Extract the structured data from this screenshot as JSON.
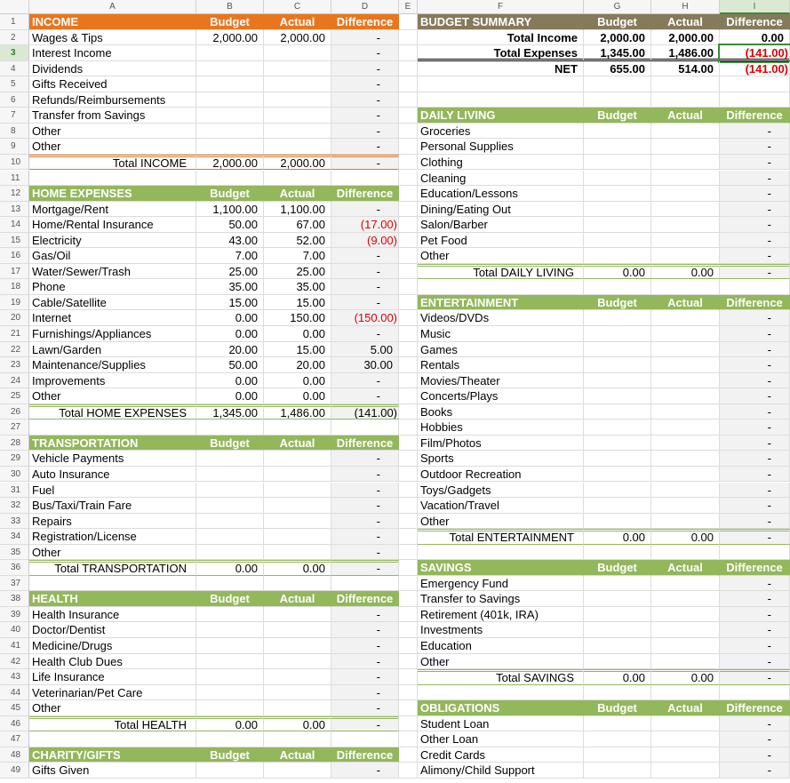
{
  "columns": [
    "A",
    "B",
    "C",
    "D",
    "E",
    "F",
    "G",
    "H",
    "I"
  ],
  "rows": [
    {
      "number": 1,
      "left": {
        "kind": "header",
        "color": "#e8761f",
        "cells": [
          "INCOME",
          "Budget",
          "Actual",
          "Difference"
        ]
      },
      "right": {
        "kind": "header",
        "color": "#857a5a",
        "cells": [
          "BUDGET SUMMARY",
          "Budget",
          "Actual",
          "Difference"
        ]
      }
    },
    {
      "number": 2,
      "left": {
        "kind": "item",
        "cells": [
          "Wages & Tips",
          "2,000.00",
          "2,000.00",
          "-"
        ]
      },
      "right": {
        "kind": "summary",
        "cells": [
          "Total Income",
          "2,000.00",
          "2,000.00",
          "0.00"
        ]
      }
    },
    {
      "number": 3,
      "left": {
        "kind": "item",
        "cells": [
          "Interest Income",
          null,
          null,
          "-"
        ]
      },
      "right": {
        "kind": "summary",
        "cells": [
          "Total Expenses",
          "1,345.00",
          "1,486.00",
          "(141.00)"
        ]
      }
    },
    {
      "number": 4,
      "left": {
        "kind": "item",
        "cells": [
          "Dividends",
          null,
          null,
          "-"
        ]
      },
      "right": {
        "kind": "summary",
        "cells": [
          "NET",
          "655.00",
          "514.00",
          "(141.00)"
        ]
      }
    },
    {
      "number": 5,
      "left": {
        "kind": "item",
        "cells": [
          "Gifts Received",
          null,
          null,
          "-"
        ]
      }
    },
    {
      "number": 6,
      "left": {
        "kind": "item",
        "cells": [
          "Refunds/Reimbursements",
          null,
          null,
          "-"
        ]
      }
    },
    {
      "number": 7,
      "left": {
        "kind": "item",
        "cells": [
          "Transfer from Savings",
          null,
          null,
          "-"
        ]
      },
      "right": {
        "kind": "header",
        "color": "#93b75b",
        "cells": [
          "DAILY LIVING",
          "Budget",
          "Actual",
          "Difference"
        ]
      }
    },
    {
      "number": 8,
      "left": {
        "kind": "item",
        "cells": [
          "Other",
          null,
          null,
          "-"
        ]
      },
      "right": {
        "kind": "item",
        "cells": [
          "Groceries",
          null,
          null,
          "-"
        ]
      }
    },
    {
      "number": 9,
      "left": {
        "kind": "item",
        "cells": [
          "Other",
          null,
          null,
          "-"
        ]
      },
      "right": {
        "kind": "item",
        "cells": [
          "Personal Supplies",
          null,
          null,
          "-"
        ]
      }
    },
    {
      "number": 10,
      "left": {
        "kind": "total",
        "cells": [
          "Total INCOME",
          "2,000.00",
          "2,000.00",
          "-"
        ]
      },
      "right": {
        "kind": "item",
        "cells": [
          "Clothing",
          null,
          null,
          "-"
        ]
      }
    },
    {
      "number": 11,
      "right": {
        "kind": "item",
        "cells": [
          "Cleaning",
          null,
          null,
          "-"
        ]
      }
    },
    {
      "number": 12,
      "left": {
        "kind": "header",
        "color": "#93b75b",
        "cells": [
          "HOME EXPENSES",
          "Budget",
          "Actual",
          "Difference"
        ]
      },
      "right": {
        "kind": "item",
        "cells": [
          "Education/Lessons",
          null,
          null,
          "-"
        ]
      }
    },
    {
      "number": 13,
      "left": {
        "kind": "item",
        "cells": [
          "Mortgage/Rent",
          "1,100.00",
          "1,100.00",
          "-"
        ]
      },
      "right": {
        "kind": "item",
        "cells": [
          "Dining/Eating Out",
          null,
          null,
          "-"
        ]
      }
    },
    {
      "number": 14,
      "left": {
        "kind": "item",
        "cells": [
          "Home/Rental Insurance",
          "50.00",
          "67.00",
          "(17.00)"
        ]
      },
      "right": {
        "kind": "item",
        "cells": [
          "Salon/Barber",
          null,
          null,
          "-"
        ]
      }
    },
    {
      "number": 15,
      "left": {
        "kind": "item",
        "cells": [
          "Electricity",
          "43.00",
          "52.00",
          "(9.00)"
        ]
      },
      "right": {
        "kind": "item",
        "cells": [
          "Pet Food",
          null,
          null,
          "-"
        ]
      }
    },
    {
      "number": 16,
      "left": {
        "kind": "item",
        "cells": [
          "Gas/Oil",
          "7.00",
          "7.00",
          "-"
        ]
      },
      "right": {
        "kind": "item",
        "cells": [
          "Other",
          null,
          null,
          "-"
        ]
      }
    },
    {
      "number": 17,
      "left": {
        "kind": "item",
        "cells": [
          "Water/Sewer/Trash",
          "25.00",
          "25.00",
          "-"
        ]
      },
      "right": {
        "kind": "total",
        "cells": [
          "Total DAILY LIVING",
          "0.00",
          "0.00",
          "-"
        ]
      }
    },
    {
      "number": 18,
      "left": {
        "kind": "item",
        "cells": [
          "Phone",
          "35.00",
          "35.00",
          "-"
        ]
      }
    },
    {
      "number": 19,
      "left": {
        "kind": "item",
        "cells": [
          "Cable/Satellite",
          "15.00",
          "15.00",
          "-"
        ]
      },
      "right": {
        "kind": "header",
        "color": "#93b75b",
        "cells": [
          "ENTERTAINMENT",
          "Budget",
          "Actual",
          "Difference"
        ]
      }
    },
    {
      "number": 20,
      "left": {
        "kind": "item",
        "cells": [
          "Internet",
          "0.00",
          "150.00",
          "(150.00)"
        ]
      },
      "right": {
        "kind": "item",
        "cells": [
          "Videos/DVDs",
          null,
          null,
          "-"
        ]
      }
    },
    {
      "number": 21,
      "left": {
        "kind": "item",
        "cells": [
          "Furnishings/Appliances",
          "0.00",
          "0.00",
          "-"
        ]
      },
      "right": {
        "kind": "item",
        "cells": [
          "Music",
          null,
          null,
          "-"
        ]
      }
    },
    {
      "number": 22,
      "left": {
        "kind": "item",
        "cells": [
          "Lawn/Garden",
          "20.00",
          "15.00",
          "5.00"
        ]
      },
      "right": {
        "kind": "item",
        "cells": [
          "Games",
          null,
          null,
          "-"
        ]
      }
    },
    {
      "number": 23,
      "left": {
        "kind": "item",
        "cells": [
          "Maintenance/Supplies",
          "50.00",
          "20.00",
          "30.00"
        ]
      },
      "right": {
        "kind": "item",
        "cells": [
          "Rentals",
          null,
          null,
          "-"
        ]
      }
    },
    {
      "number": 24,
      "left": {
        "kind": "item",
        "cells": [
          "Improvements",
          "0.00",
          "0.00",
          "-"
        ]
      },
      "right": {
        "kind": "item",
        "cells": [
          "Movies/Theater",
          null,
          null,
          "-"
        ]
      }
    },
    {
      "number": 25,
      "left": {
        "kind": "item",
        "cells": [
          "Other",
          "0.00",
          "0.00",
          "-"
        ]
      },
      "right": {
        "kind": "item",
        "cells": [
          "Concerts/Plays",
          null,
          null,
          "-"
        ]
      }
    },
    {
      "number": 26,
      "left": {
        "kind": "total",
        "cells": [
          "Total HOME EXPENSES",
          "1,345.00",
          "1,486.00",
          "(141.00)"
        ]
      },
      "right": {
        "kind": "item",
        "cells": [
          "Books",
          null,
          null,
          "-"
        ]
      }
    },
    {
      "number": 27,
      "right": {
        "kind": "item",
        "cells": [
          "Hobbies",
          null,
          null,
          "-"
        ]
      }
    },
    {
      "number": 28,
      "left": {
        "kind": "header",
        "color": "#93b75b",
        "cells": [
          "TRANSPORTATION",
          "Budget",
          "Actual",
          "Difference"
        ]
      },
      "right": {
        "kind": "item",
        "cells": [
          "Film/Photos",
          null,
          null,
          "-"
        ]
      }
    },
    {
      "number": 29,
      "left": {
        "kind": "item",
        "cells": [
          "Vehicle Payments",
          null,
          null,
          "-"
        ]
      },
      "right": {
        "kind": "item",
        "cells": [
          "Sports",
          null,
          null,
          "-"
        ]
      }
    },
    {
      "number": 30,
      "left": {
        "kind": "item",
        "cells": [
          "Auto Insurance",
          null,
          null,
          "-"
        ]
      },
      "right": {
        "kind": "item",
        "cells": [
          "Outdoor Recreation",
          null,
          null,
          "-"
        ]
      }
    },
    {
      "number": 31,
      "left": {
        "kind": "item",
        "cells": [
          "Fuel",
          null,
          null,
          "-"
        ]
      },
      "right": {
        "kind": "item",
        "cells": [
          "Toys/Gadgets",
          null,
          null,
          "-"
        ]
      }
    },
    {
      "number": 32,
      "left": {
        "kind": "item",
        "cells": [
          "Bus/Taxi/Train Fare",
          null,
          null,
          "-"
        ]
      },
      "right": {
        "kind": "item",
        "cells": [
          "Vacation/Travel",
          null,
          null,
          "-"
        ]
      }
    },
    {
      "number": 33,
      "left": {
        "kind": "item",
        "cells": [
          "Repairs",
          null,
          null,
          "-"
        ]
      },
      "right": {
        "kind": "item",
        "cells": [
          "Other",
          null,
          null,
          "-"
        ]
      }
    },
    {
      "number": 34,
      "left": {
        "kind": "item",
        "cells": [
          "Registration/License",
          null,
          null,
          "-"
        ]
      },
      "right": {
        "kind": "total",
        "cells": [
          "Total ENTERTAINMENT",
          "0.00",
          "0.00",
          "-"
        ]
      }
    },
    {
      "number": 35,
      "left": {
        "kind": "item",
        "cells": [
          "Other",
          null,
          null,
          "-"
        ]
      }
    },
    {
      "number": 36,
      "left": {
        "kind": "total",
        "cells": [
          "Total TRANSPORTATION",
          "0.00",
          "0.00",
          "-"
        ]
      },
      "right": {
        "kind": "header",
        "color": "#93b75b",
        "cells": [
          "SAVINGS",
          "Budget",
          "Actual",
          "Difference"
        ]
      }
    },
    {
      "number": 37,
      "right": {
        "kind": "item",
        "cells": [
          "Emergency Fund",
          null,
          null,
          "-"
        ]
      }
    },
    {
      "number": 38,
      "left": {
        "kind": "header",
        "color": "#93b75b",
        "cells": [
          "HEALTH",
          "Budget",
          "Actual",
          "Difference"
        ]
      },
      "right": {
        "kind": "item",
        "cells": [
          "Transfer to Savings",
          null,
          null,
          "-"
        ]
      }
    },
    {
      "number": 39,
      "left": {
        "kind": "item",
        "cells": [
          "Health Insurance",
          null,
          null,
          "-"
        ]
      },
      "right": {
        "kind": "item",
        "cells": [
          "Retirement (401k, IRA)",
          null,
          null,
          "-"
        ]
      }
    },
    {
      "number": 40,
      "left": {
        "kind": "item",
        "cells": [
          "Doctor/Dentist",
          null,
          null,
          "-"
        ]
      },
      "right": {
        "kind": "item",
        "cells": [
          "Investments",
          null,
          null,
          "-"
        ]
      }
    },
    {
      "number": 41,
      "left": {
        "kind": "item",
        "cells": [
          "Medicine/Drugs",
          null,
          null,
          "-"
        ]
      },
      "right": {
        "kind": "item",
        "cells": [
          "Education",
          null,
          null,
          "-"
        ]
      }
    },
    {
      "number": 42,
      "left": {
        "kind": "item",
        "cells": [
          "Health Club Dues",
          null,
          null,
          "-"
        ]
      },
      "right": {
        "kind": "item",
        "cells": [
          "Other",
          null,
          null,
          "-"
        ]
      }
    },
    {
      "number": 43,
      "left": {
        "kind": "item",
        "cells": [
          "Life Insurance",
          null,
          null,
          "-"
        ]
      },
      "right": {
        "kind": "total",
        "cells": [
          "Total SAVINGS",
          "0.00",
          "0.00",
          "-"
        ]
      }
    },
    {
      "number": 44,
      "left": {
        "kind": "item",
        "cells": [
          "Veterinarian/Pet Care",
          null,
          null,
          "-"
        ]
      }
    },
    {
      "number": 45,
      "left": {
        "kind": "item",
        "cells": [
          "Other",
          null,
          null,
          "-"
        ]
      },
      "right": {
        "kind": "header",
        "color": "#93b75b",
        "cells": [
          "OBLIGATIONS",
          "Budget",
          "Actual",
          "Difference"
        ]
      }
    },
    {
      "number": 46,
      "left": {
        "kind": "total",
        "cells": [
          "Total HEALTH",
          "0.00",
          "0.00",
          "-"
        ]
      },
      "right": {
        "kind": "item",
        "cells": [
          "Student Loan",
          null,
          null,
          "-"
        ]
      }
    },
    {
      "number": 47,
      "right": {
        "kind": "item",
        "cells": [
          "Other Loan",
          null,
          null,
          "-"
        ]
      }
    },
    {
      "number": 48,
      "left": {
        "kind": "header",
        "color": "#93b75b",
        "cells": [
          "CHARITY/GIFTS",
          "Budget",
          "Actual",
          "Difference"
        ]
      },
      "right": {
        "kind": "item",
        "cells": [
          "Credit Cards",
          null,
          null,
          "-"
        ]
      }
    },
    {
      "number": 49,
      "left": {
        "kind": "item",
        "cells": [
          "Gifts Given",
          null,
          null,
          "-"
        ]
      },
      "right": {
        "kind": "item",
        "cells": [
          "Alimony/Child Support",
          null,
          null,
          "-"
        ]
      }
    }
  ]
}
